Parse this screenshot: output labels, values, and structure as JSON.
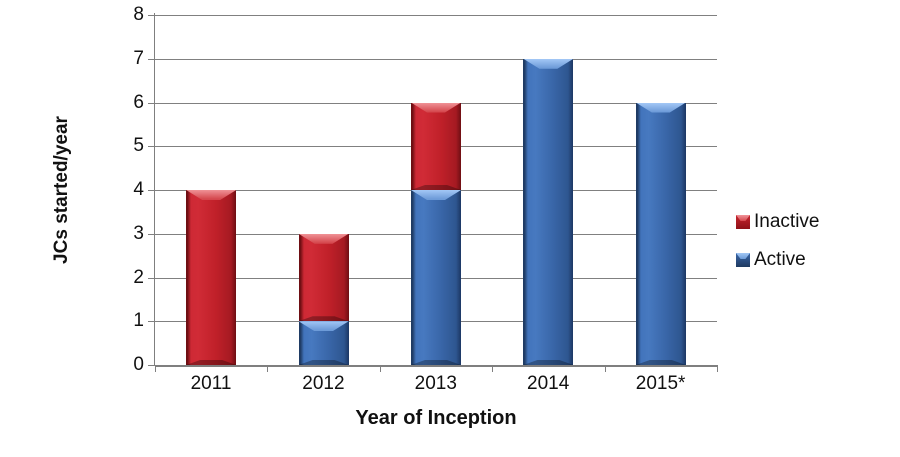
{
  "chart_data": {
    "type": "bar",
    "stacked": true,
    "title": "",
    "categories": [
      "2011",
      "2012",
      "2013",
      "2014",
      "2015*"
    ],
    "series": [
      {
        "name": "Inactive",
        "color": "#C0202A",
        "values": [
          4,
          2,
          2,
          0,
          0
        ]
      },
      {
        "name": "Active",
        "color": "#3966A8",
        "values": [
          0,
          1,
          4,
          7,
          6
        ]
      }
    ],
    "stack_order_bottom_to_top": [
      "Active",
      "Inactive"
    ],
    "xlabel": "Year of Inception",
    "ylabel": "JCs started/year",
    "ylim": [
      0,
      8
    ],
    "ytick_step": 1,
    "yticks": [
      0,
      1,
      2,
      3,
      4,
      5,
      6,
      7,
      8
    ],
    "grid": true,
    "gridline_color": "#808080",
    "axis_color": "#7F7F7F",
    "legend_position": "right",
    "background_color": "#FFFFFF"
  }
}
